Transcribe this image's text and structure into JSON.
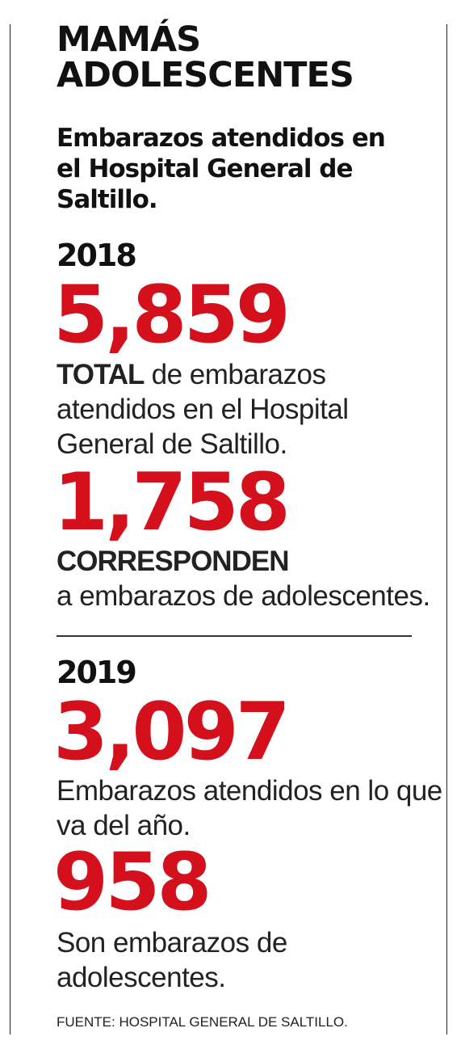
{
  "header": {
    "title_line1": "MAMÁS",
    "title_line2": "ADOLESCENTES",
    "subtitle": "Embarazos atendidos en el Hospital General de Saltillo."
  },
  "sections": [
    {
      "year": "2018",
      "stats": [
        {
          "value": "5,859",
          "strong": "TOTAL",
          "text": " de embarazos atendidos en el Hospital General de Saltillo."
        },
        {
          "value": "1,758",
          "strong": "CORRESPONDEN",
          "text": "a embarazos de adolescentes."
        }
      ]
    },
    {
      "year": "2019",
      "stats": [
        {
          "value": "3,097",
          "text": "Embarazos atendidos en lo que va del año."
        },
        {
          "value": "958",
          "text": "Son embarazos de adolescentes."
        }
      ]
    }
  ],
  "source": "FUENTE: HOSPITAL GENERAL DE SALTILLO.",
  "colors": {
    "accent": "#d4101c",
    "text": "#1a1a1a"
  }
}
